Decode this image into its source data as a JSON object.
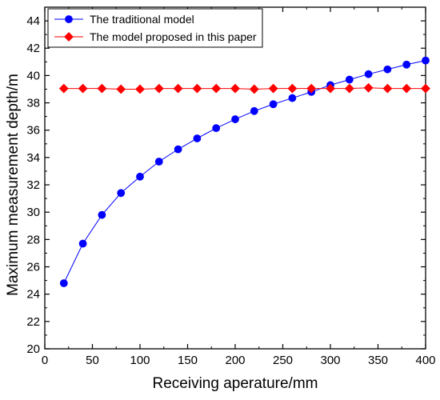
{
  "chart_data": {
    "type": "line",
    "xlabel": "Receiving aperature/mm",
    "ylabel": "Maximum measurement depth/m",
    "xlim": [
      0,
      400
    ],
    "ylim": [
      20,
      45
    ],
    "x_ticks": [
      0,
      50,
      100,
      150,
      200,
      250,
      300,
      350,
      400
    ],
    "y_ticks": [
      20,
      22,
      24,
      26,
      28,
      30,
      32,
      34,
      36,
      38,
      40,
      42,
      44
    ],
    "legend_position": "top-left",
    "x": [
      20,
      40,
      60,
      80,
      100,
      120,
      140,
      160,
      180,
      200,
      220,
      240,
      260,
      280,
      300,
      320,
      340,
      360,
      380,
      400
    ],
    "series": [
      {
        "name": "The traditional model",
        "color": "#0000ff",
        "marker": "circle",
        "values": [
          24.8,
          27.7,
          29.8,
          31.4,
          32.6,
          33.7,
          34.6,
          35.4,
          36.15,
          36.8,
          37.4,
          37.9,
          38.35,
          38.8,
          39.3,
          39.7,
          40.1,
          40.45,
          40.8,
          41.1
        ]
      },
      {
        "name": "The model proposed in this paper",
        "color": "#ff0000",
        "marker": "diamond",
        "values": [
          39.05,
          39.05,
          39.05,
          39.0,
          39.0,
          39.05,
          39.05,
          39.05,
          39.05,
          39.05,
          39.0,
          39.05,
          39.05,
          39.05,
          39.05,
          39.05,
          39.1,
          39.05,
          39.05,
          39.05
        ]
      }
    ]
  }
}
